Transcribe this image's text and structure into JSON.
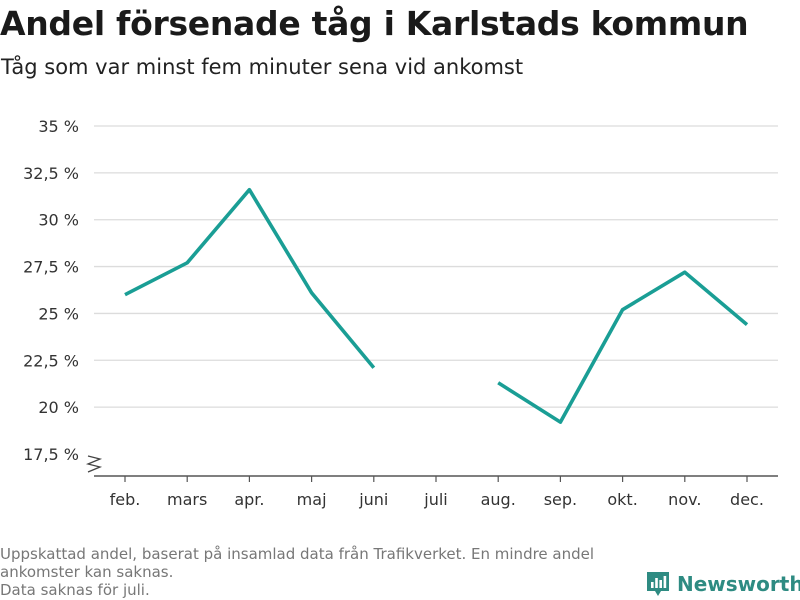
{
  "title": "Andel försenade tåg i Karlstads kommun",
  "subtitle": "Tåg som var minst fem minuter sena vid ankomst",
  "footnote": {
    "line1": "Uppskattad andel, baserat på insamlad data från Trafikverket. En mindre andel ankomster kan saknas.",
    "line2": "Data saknas för juli."
  },
  "brand": {
    "name": "Newsworthy",
    "icon": "newsworthy-logo-icon",
    "color": "#2e8b82"
  },
  "chart_data": {
    "type": "line",
    "categories": [
      "feb.",
      "mars",
      "apr.",
      "maj",
      "juni",
      "juli",
      "aug.",
      "sep.",
      "okt.",
      "nov.",
      "dec."
    ],
    "series": [
      {
        "values": [
          26.0,
          27.7,
          31.6,
          26.1,
          22.1,
          null,
          21.3,
          19.2,
          25.2,
          27.2,
          24.4
        ],
        "color": "#1a9e95"
      }
    ],
    "yticks": [
      17.5,
      20,
      22.5,
      25,
      27.5,
      30,
      32.5,
      35
    ],
    "ytick_labels": [
      "17,5 %",
      "20 %",
      "22,5 %",
      "25 %",
      "27,5 %",
      "30 %",
      "32,5 %",
      "35 %"
    ],
    "ylim": [
      17.5,
      35
    ],
    "y_axis_break": true,
    "grid": true,
    "xlabel": "",
    "ylabel": ""
  }
}
